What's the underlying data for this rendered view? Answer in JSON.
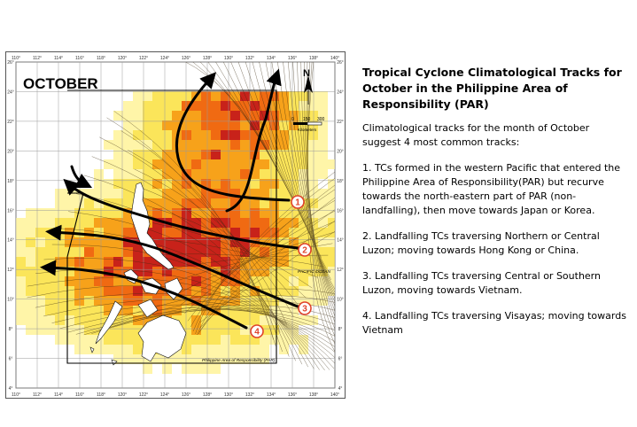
{
  "map": {
    "month_label": "OCTOBER",
    "north_label": "N",
    "scale": {
      "ticks": [
        "0",
        "150",
        "300"
      ],
      "unit": "Kilometers"
    },
    "ocean_label": "PACIFIC OCEAN",
    "par_label": "Philippine Area of Responsibility (PAR)",
    "lon_ticks": [
      "110°",
      "112°",
      "114°",
      "116°",
      "118°",
      "120°",
      "122°",
      "124°",
      "126°",
      "128°",
      "130°",
      "132°",
      "134°",
      "136°",
      "138°",
      "140°"
    ],
    "lat_ticks": [
      "26°",
      "24°",
      "22°",
      "20°",
      "18°",
      "16°",
      "14°",
      "12°",
      "10°",
      "8°",
      "6°",
      "4°"
    ],
    "track_markers": [
      "1",
      "2",
      "3",
      "4"
    ],
    "colors": {
      "high": "#c8221a",
      "mid": "#f06a12",
      "low": "#f7a21a",
      "light": "#fbe55a",
      "pale": "#fff5a8",
      "marker": "#e0432a"
    }
  },
  "panel": {
    "title": "Tropical Cyclone Climatological  Tracks for October in the Philippine Area of Responsibility (PAR)",
    "intro": "Climatological tracks for the month of October suggest 4 most common tracks:",
    "items": [
      "1. TCs formed in the western Pacific that entered the Philippine Area of Responsibility(PAR) but recurve towards the north-eastern part of PAR (non-landfalling), then move towards Japan or Korea.",
      "2. Landfalling TCs traversing Northern or Central Luzon; moving towards Hong Kong or China.",
      "3. Landfalling TCs traversing Central or Southern Luzon, moving towards Vietnam.",
      "4. Landfalling TCs traversing Visayas; moving towards Vietnam"
    ]
  }
}
